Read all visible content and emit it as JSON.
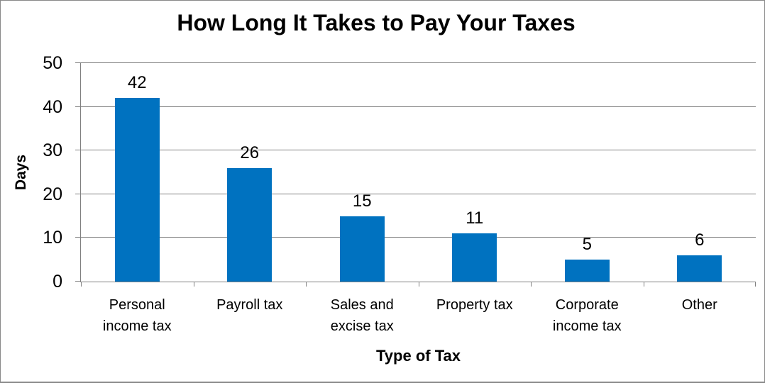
{
  "chart_data": {
    "type": "bar",
    "title": "How Long It Takes to Pay Your Taxes",
    "xlabel": "Type of Tax",
    "ylabel": "Days",
    "categories": [
      "Personal income tax",
      "Payroll tax",
      "Sales and excise tax",
      "Property tax",
      "Corporate income tax",
      "Other"
    ],
    "category_label_lines": [
      [
        "Personal",
        "income tax"
      ],
      [
        "Payroll tax"
      ],
      [
        "Sales and",
        "excise tax"
      ],
      [
        "Property tax"
      ],
      [
        "Corporate",
        "income tax"
      ],
      [
        "Other"
      ]
    ],
    "values": [
      42,
      26,
      15,
      11,
      5,
      6
    ],
    "data_labels": [
      "42",
      "26",
      "15",
      "11",
      "5",
      "6"
    ],
    "ylim": [
      0,
      50
    ],
    "yticks": [
      0,
      10,
      20,
      30,
      40,
      50
    ],
    "grid": "horizontal",
    "legend": "none",
    "colors": {
      "bar": "#0072C0",
      "gridline": "#808080",
      "axis": "#808080",
      "text": "#000000",
      "chart_border": "#898989",
      "background": "#FFFFFF"
    }
  }
}
